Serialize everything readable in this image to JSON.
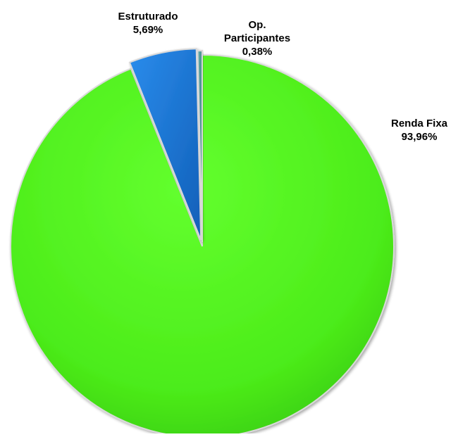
{
  "chart_data": {
    "type": "pie",
    "title": "",
    "categories": [
      "Renda Fixa",
      "Estruturado",
      "Op. Participantes"
    ],
    "values": [
      93.96,
      5.69,
      0.38
    ],
    "value_labels": [
      "93,96%",
      "5,69%",
      "0,38%"
    ],
    "colors": [
      "#4fee1c",
      "#1f7ad8",
      "#4c9a9a"
    ],
    "exploded": [
      false,
      true,
      true
    ],
    "legend": "none"
  }
}
